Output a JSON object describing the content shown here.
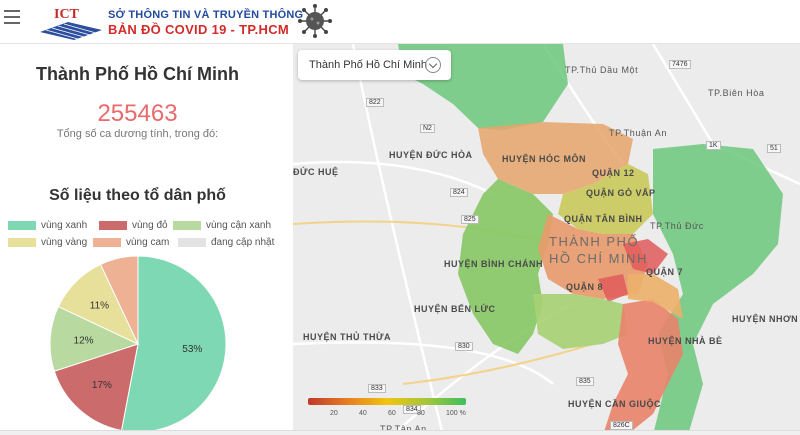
{
  "header": {
    "logo_text": "ICT",
    "brand_top": "SỞ THÔNG TIN VÀ TRUYỀN THÔNG",
    "brand_bottom": "BẢN ĐỒ  COVID 19 - TP.HCM"
  },
  "summary": {
    "city_title": "Thành Phố Hồ Chí Minh",
    "total_cases": "255463",
    "total_caption": "Tổng số ca dương tính, trong đó:"
  },
  "stats": {
    "title": "Số liệu theo tổ dân phố",
    "legend": [
      {
        "label": "vùng xanh",
        "color": "#7fd8b4"
      },
      {
        "label": "vùng đỏ",
        "color": "#cc6b6b"
      },
      {
        "label": "vùng cận xanh",
        "color": "#b8daa0"
      },
      {
        "label": "vùng vàng",
        "color": "#e7e09a"
      },
      {
        "label": "vùng cam",
        "color": "#eeb194"
      },
      {
        "label": "đang cập nhật",
        "color": "#e3e3e3"
      }
    ],
    "chart_data": {
      "type": "pie",
      "categories": [
        "vùng xanh",
        "vùng đỏ",
        "vùng cận xanh",
        "vùng vàng",
        "vùng cam"
      ],
      "values": [
        53,
        17,
        12,
        11,
        7
      ],
      "labels": [
        "53%",
        "17%",
        "12%",
        "11%",
        ""
      ]
    }
  },
  "map": {
    "selected_city": "Thành Phố Hồ Chí Minh",
    "labels": {
      "thu_dau_mot": "TP.Thủ Dầu Một",
      "bien_hoa": "TP.Biên Hòa",
      "thuan_an": "TP.Thuận An",
      "duc_hoa": "HUYỆN ĐỨC HÒA",
      "duc_hue": "ĐỨC HUỆ",
      "hoc_mon": "HUYỆN HÓC MÔN",
      "quan12": "QUẬN 12",
      "go_vap": "QUẬN GÒ VẤP",
      "tan_binh": "QUẬN TÂN BÌNH",
      "city_line1": "THÀNH PHỐ",
      "city_line2": "HỒ CHÍ MINH",
      "thu_duc": "TP.Thủ Đức",
      "binh_chanh": "HUYỆN BÌNH CHÁNH",
      "quan8": "QUẬN 8",
      "quan7": "QUẬN 7",
      "ben_luc": "HUYỆN BẾN LỨC",
      "thu_thua": "HUYỆN THỦ THỪA",
      "nha_be": "HUYỆN NHÀ BÈ",
      "nhon_trach": "HUYỆN NHƠN T",
      "can_giuoc": "HUYỆN CẦN GIUỘC",
      "tan_an": "TP.Tân An"
    },
    "roads": [
      "822",
      "N2",
      "824",
      "825",
      "7476",
      "1K",
      "51",
      "830",
      "833",
      "835",
      "826C",
      "834"
    ],
    "scale_labels": [
      "20",
      "40",
      "60",
      "80",
      "100 %"
    ]
  }
}
